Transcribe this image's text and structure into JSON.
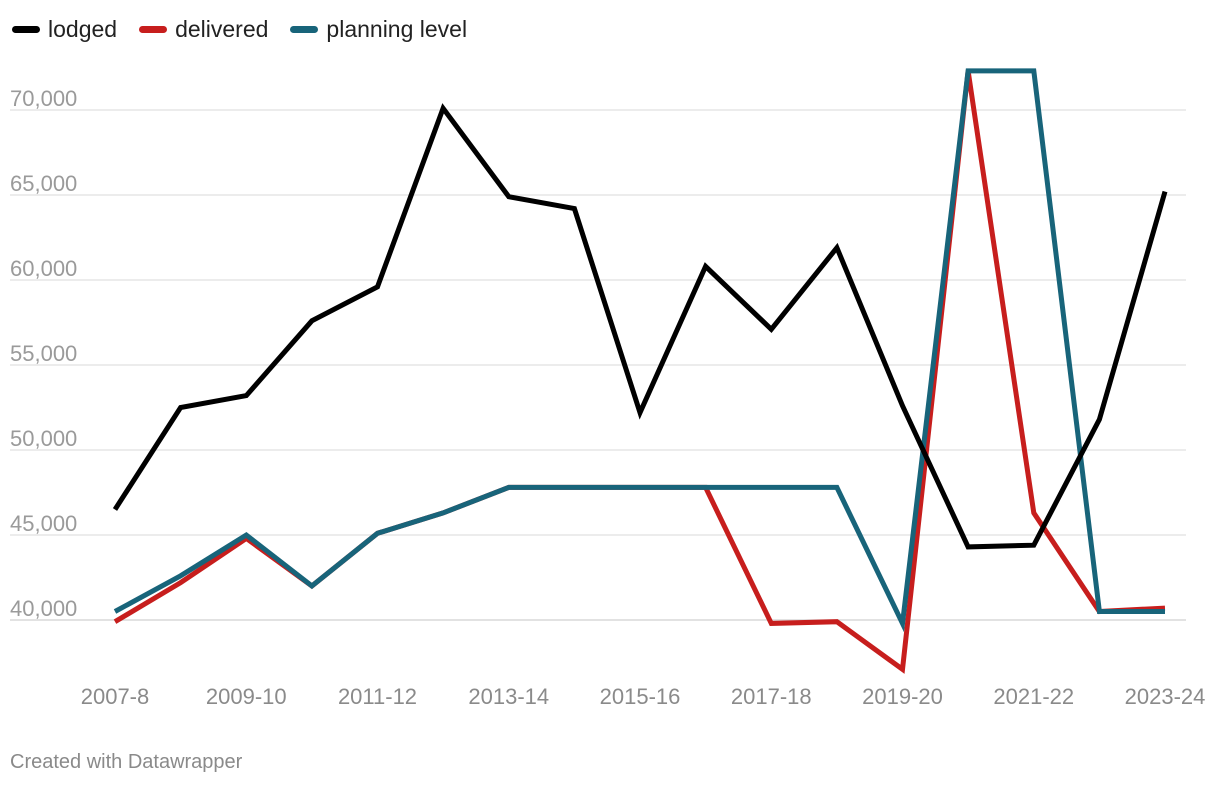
{
  "chart_data": {
    "type": "line",
    "title": "",
    "xlabel": "",
    "ylabel": "",
    "categories": [
      "2007-8",
      "2008-9",
      "2009-10",
      "2010-11",
      "2011-12",
      "2012-13",
      "2013-14",
      "2014-15",
      "2015-16",
      "2016-17",
      "2017-18",
      "2018-19",
      "2019-20",
      "2020-21",
      "2021-22",
      "2022-23",
      "2023-24"
    ],
    "x_tick_labels": [
      "2007-8",
      "2009-10",
      "2011-12",
      "2013-14",
      "2015-16",
      "2017-18",
      "2019-20",
      "2021-22",
      "2023-24"
    ],
    "y_ticks": [
      40000,
      45000,
      50000,
      55000,
      60000,
      65000,
      70000
    ],
    "y_tick_labels": [
      "40,000",
      "45,000",
      "50,000",
      "55,000",
      "60,000",
      "65,000",
      "70,000"
    ],
    "ylim": [
      37000,
      72500
    ],
    "grid": true,
    "legend_position": "top-left",
    "series": [
      {
        "name": "lodged",
        "color": "#000000",
        "values": [
          46500,
          52500,
          53200,
          57600,
          59600,
          70100,
          64900,
          64200,
          52200,
          60800,
          57100,
          61900,
          52600,
          44300,
          44400,
          51800,
          65200
        ]
      },
      {
        "name": "delivered",
        "color": "#c71e1d",
        "values": [
          39900,
          42200,
          44800,
          42000,
          45100,
          46300,
          47800,
          47800,
          47800,
          47800,
          39800,
          39900,
          37100,
          72300,
          46300,
          40500,
          40700
        ]
      },
      {
        "name": "planning level",
        "color": "#18647a",
        "values": [
          40500,
          42600,
          45000,
          42000,
          45100,
          46300,
          47800,
          47800,
          47800,
          47800,
          47800,
          47800,
          39800,
          72300,
          72300,
          40500,
          40500
        ]
      }
    ]
  },
  "footer": {
    "credit": "Created with Datawrapper"
  }
}
